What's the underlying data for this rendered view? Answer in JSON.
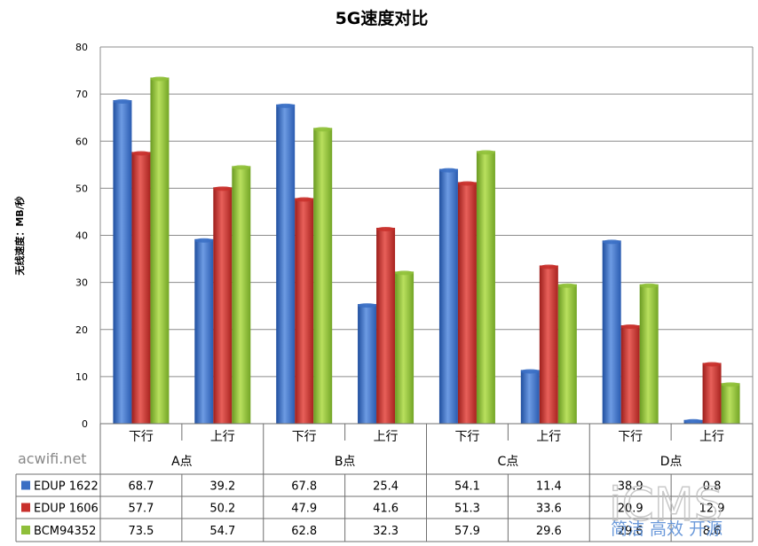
{
  "chart_data": {
    "type": "bar",
    "title": "5G速度对比",
    "ylabel": "无线速度：MB/秒",
    "ylim": [
      0,
      80
    ],
    "yticks": [
      0,
      10,
      20,
      30,
      40,
      50,
      60,
      70,
      80
    ],
    "grid": true,
    "groups": [
      "A点",
      "B点",
      "C点",
      "D点"
    ],
    "subcategories": [
      "下行",
      "上行"
    ],
    "categories": [
      "A点 下行",
      "A点 上行",
      "B点 下行",
      "B点 上行",
      "C点 下行",
      "C点 上行",
      "D点 下行",
      "D点 上行"
    ],
    "legend_position": "bottom (data table)",
    "series": [
      {
        "name": "EDUP 1622",
        "color": "#3a6fc4",
        "values": [
          68.7,
          39.2,
          67.8,
          25.4,
          54.1,
          11.4,
          38.9,
          0.8
        ]
      },
      {
        "name": "EDUP 1606",
        "color": "#c8302c",
        "values": [
          57.7,
          50.2,
          47.9,
          41.6,
          51.3,
          33.6,
          20.9,
          12.9
        ]
      },
      {
        "name": "BCM94352",
        "color": "#8fbf3a",
        "values": [
          73.5,
          54.7,
          62.8,
          32.3,
          57.9,
          29.6,
          29.6,
          8.6
        ]
      }
    ]
  },
  "watermarks": {
    "left": "acwifi.net",
    "right_logo": "iCMS",
    "right_slogan": "简洁 高效 开源"
  }
}
